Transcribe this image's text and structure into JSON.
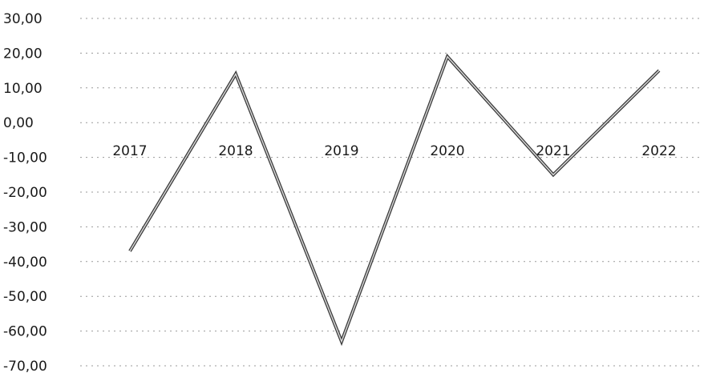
{
  "chart_data": {
    "type": "line",
    "title": "",
    "xlabel": "",
    "ylabel": "",
    "categories": [
      "2017",
      "2018",
      "2019",
      "2020",
      "2021",
      "2022"
    ],
    "series": [
      {
        "values": [
          -37,
          14,
          -63,
          19,
          -15,
          15
        ],
        "color": "#3c3c3c"
      }
    ],
    "ylim": [
      -70,
      30
    ],
    "yticks": [
      30,
      20,
      10,
      0,
      -10,
      -20,
      -30,
      -40,
      -50,
      -60,
      -70
    ],
    "ytick_labels": [
      "30,00",
      "20,00",
      "10,00",
      "0,00",
      "-10,00",
      "-20,00",
      "-30,00",
      "-40,00",
      "-50,00",
      "-60,00",
      "-70,00"
    ],
    "grid": true,
    "legend": "none"
  }
}
